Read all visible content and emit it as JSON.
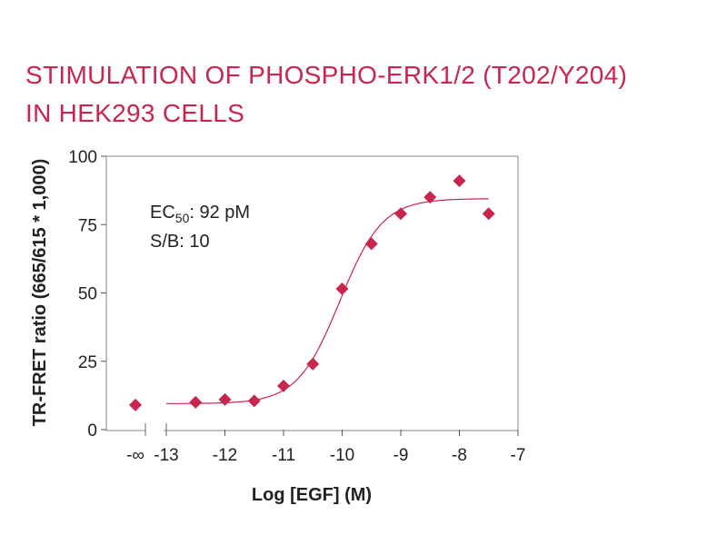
{
  "chart_data": {
    "type": "scatter",
    "title_lines": [
      "STIMULATION OF PHOSPHO-ERK1/2 (T202/Y204)",
      "IN HEK293 CELLS"
    ],
    "xlabel": "Log [EGF] (M)",
    "ylabel": "TR-FRET ratio (665/615 * 1,000)",
    "x_tick_labels": [
      "-∞",
      "-13",
      "-12",
      "-11",
      "-10",
      "-9",
      "-8",
      "-7"
    ],
    "x_ticks": [
      -13,
      -12,
      -11,
      -10,
      -9,
      -8,
      -7
    ],
    "xlim": [
      -13,
      -7
    ],
    "ylim": [
      0,
      100
    ],
    "y_ticks": [
      0,
      25,
      50,
      75,
      100
    ],
    "grid": false,
    "series": [
      {
        "color": "#c8254f",
        "marker": "diamond",
        "x_minus_infinity_y": 9,
        "points": [
          {
            "x": -12.5,
            "y": 10
          },
          {
            "x": -12.0,
            "y": 11
          },
          {
            "x": -11.5,
            "y": 10.5
          },
          {
            "x": -11.0,
            "y": 16
          },
          {
            "x": -10.5,
            "y": 24
          },
          {
            "x": -10.0,
            "y": 51.5
          },
          {
            "x": -9.5,
            "y": 68
          },
          {
            "x": -9.0,
            "y": 79
          },
          {
            "x": -8.5,
            "y": 85
          },
          {
            "x": -8.0,
            "y": 91
          },
          {
            "x": -7.5,
            "y": 79
          }
        ],
        "fit": {
          "bottom": 9.5,
          "top": 84.5,
          "logEC50": -10.04,
          "hill": 1.2,
          "x_range": [
            -13,
            -7.5
          ]
        }
      }
    ],
    "annotations": {
      "ec50_main": "EC",
      "ec50_sub": "50",
      "ec50_value": ": 92 pM",
      "sb": "S/B: 10"
    }
  }
}
